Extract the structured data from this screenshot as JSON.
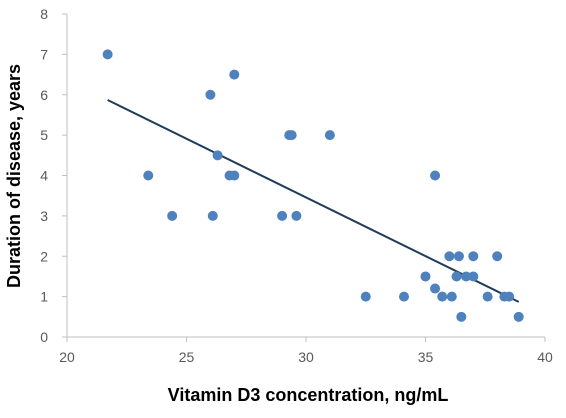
{
  "chart_data": {
    "type": "scatter",
    "title": "",
    "xlabel": "Vitamin D3 concentration, ng/mL",
    "ylabel": "Duration of disease, years",
    "xlim": [
      20,
      40
    ],
    "ylim": [
      0,
      8
    ],
    "xticks": [
      20,
      25,
      30,
      35,
      40
    ],
    "yticks": [
      0,
      1,
      2,
      3,
      4,
      5,
      6,
      7,
      8
    ],
    "grid": false,
    "legend": "none",
    "colors": {
      "points": "#4F81BD",
      "trendline": "#1F3B5C",
      "axis": "#BFBFBF",
      "tick_text": "#595959"
    },
    "series": [
      {
        "points": [
          [
            21.7,
            7
          ],
          [
            23.4,
            4
          ],
          [
            24.4,
            3
          ],
          [
            26.0,
            6
          ],
          [
            26.1,
            3
          ],
          [
            26.3,
            4.5
          ],
          [
            26.8,
            4
          ],
          [
            27.0,
            6.5
          ],
          [
            27.0,
            4
          ],
          [
            29.0,
            3
          ],
          [
            29.3,
            5
          ],
          [
            29.4,
            5
          ],
          [
            29.6,
            3
          ],
          [
            31.0,
            5
          ],
          [
            32.5,
            1
          ],
          [
            34.1,
            1
          ],
          [
            35.0,
            1.5
          ],
          [
            35.4,
            1.2
          ],
          [
            35.4,
            4
          ],
          [
            35.7,
            1
          ],
          [
            36.0,
            2
          ],
          [
            36.1,
            1
          ],
          [
            36.3,
            1.5
          ],
          [
            36.4,
            2
          ],
          [
            36.5,
            0.5
          ],
          [
            36.7,
            1.5
          ],
          [
            37.0,
            2
          ],
          [
            37.0,
            1.5
          ],
          [
            37.6,
            1
          ],
          [
            38.0,
            2
          ],
          [
            38.3,
            1
          ],
          [
            38.5,
            1
          ],
          [
            38.9,
            0.5
          ]
        ]
      }
    ],
    "trendline": {
      "type": "linear",
      "from": [
        21.7,
        5.87
      ],
      "to": [
        38.9,
        0.87
      ]
    }
  }
}
